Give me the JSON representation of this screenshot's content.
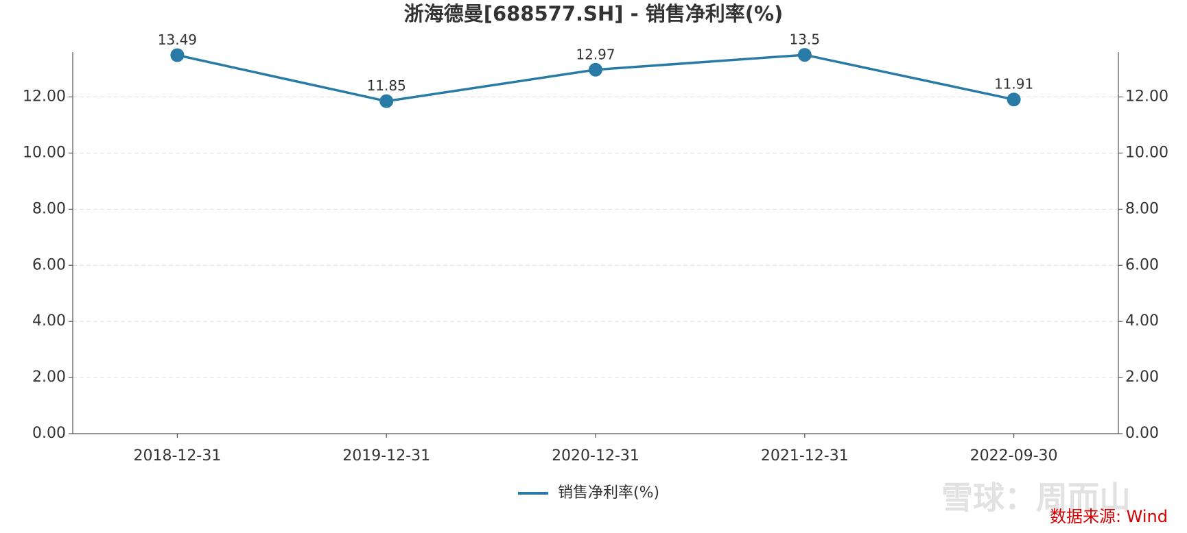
{
  "chart_data": {
    "type": "line",
    "title": "浙海德曼[688577.SH] - 销售净利率(%)",
    "categories": [
      "2018-12-31",
      "2019-12-31",
      "2020-12-31",
      "2021-12-31",
      "2022-09-30"
    ],
    "series": [
      {
        "name": "销售净利率(%)",
        "color": "#2a7aa6",
        "values": [
          13.49,
          11.85,
          12.97,
          13.5,
          11.91
        ]
      }
    ],
    "ylim": [
      0,
      13.6
    ],
    "yticks": [
      {
        "value": 0,
        "label": "0.00"
      },
      {
        "value": 2,
        "label": "2.00"
      },
      {
        "value": 4,
        "label": "4.00"
      },
      {
        "value": 6,
        "label": "6.00"
      },
      {
        "value": 8,
        "label": "8.00"
      },
      {
        "value": 10,
        "label": "10.00"
      },
      {
        "value": 12,
        "label": "12.00"
      }
    ],
    "y2lim": [
      0,
      13.6
    ],
    "y2ticks": [
      {
        "value": 0,
        "label": "0.00"
      },
      {
        "value": 2,
        "label": "2.00"
      },
      {
        "value": 4,
        "label": "4.00"
      },
      {
        "value": 6,
        "label": "6.00"
      },
      {
        "value": 8,
        "label": "8.00"
      },
      {
        "value": 10,
        "label": "10.00"
      },
      {
        "value": 12,
        "label": "12.00"
      }
    ],
    "grid": true,
    "legend": "bottom",
    "watermark": "雪球：周而山",
    "source": "数据来源: Wind"
  }
}
